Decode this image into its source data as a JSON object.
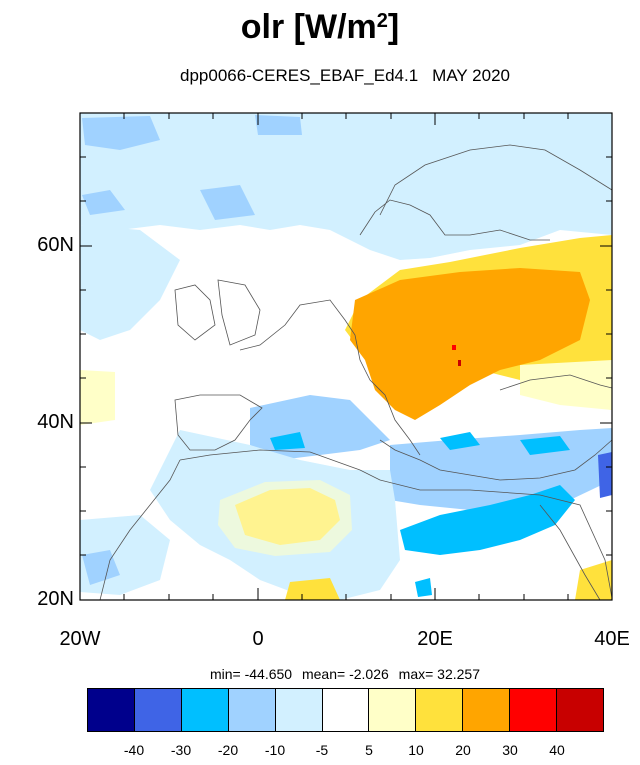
{
  "title": {
    "main": "olr [W/m",
    "sup": "2",
    "close": "]"
  },
  "subtitle": {
    "run": "dpp0066-CERES_EBAF_Ed4.1",
    "period": "MAY 2020"
  },
  "axes": {
    "y_labels": [
      "60N",
      "40N",
      "20N"
    ],
    "x_labels": [
      "20W",
      "0",
      "20E",
      "40E"
    ]
  },
  "stats": {
    "min": "min= -44.650",
    "mean": "mean=  -2.026",
    "max": "max=  32.257"
  },
  "colorbar": {
    "colors": [
      "#00008c",
      "#3f64e6",
      "#00bfff",
      "#a0d2ff",
      "#d2f0ff",
      "#ffffff",
      "#ffffc8",
      "#ffe13c",
      "#ffa500",
      "#ff0000",
      "#c80000"
    ],
    "tick_labels": [
      "-40",
      "-30",
      "-20",
      "-10",
      "-5",
      "5",
      "10",
      "20",
      "30",
      "40"
    ]
  }
}
